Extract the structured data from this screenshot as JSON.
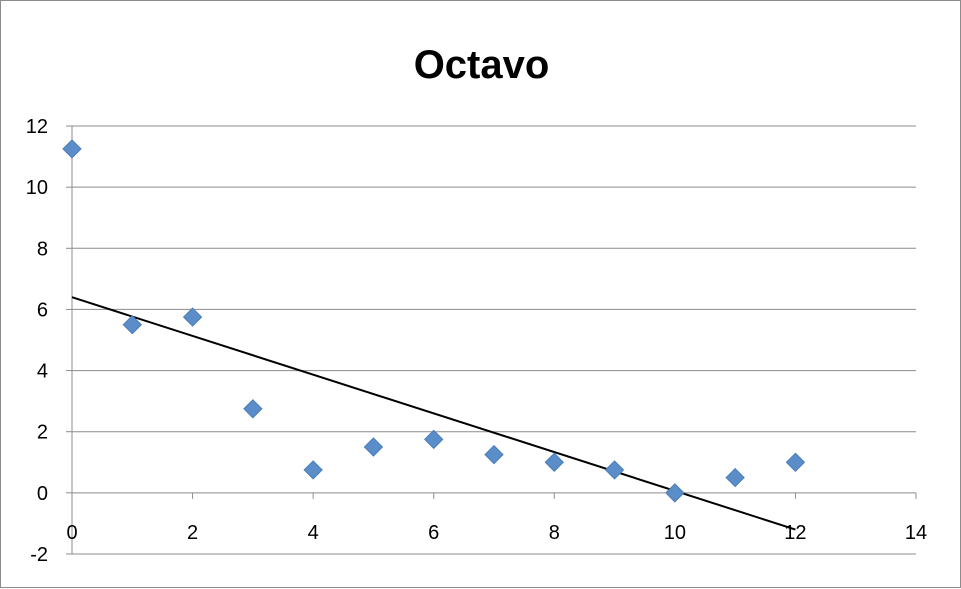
{
  "chart_data": {
    "type": "scatter",
    "title": "Octavo",
    "xlabel": "",
    "ylabel": "",
    "xlim": [
      0,
      14
    ],
    "ylim": [
      -2,
      12
    ],
    "x_ticks": [
      0,
      2,
      4,
      6,
      8,
      10,
      12,
      14
    ],
    "y_ticks": [
      -2,
      0,
      2,
      4,
      6,
      8,
      10,
      12
    ],
    "horizontal_gridlines": true,
    "legend": "none",
    "series": [
      {
        "marker": "diamond",
        "color": "#5B8DC8",
        "points": [
          {
            "x": 0,
            "y": 11.25
          },
          {
            "x": 1,
            "y": 5.5
          },
          {
            "x": 2,
            "y": 5.75
          },
          {
            "x": 3,
            "y": 2.75
          },
          {
            "x": 4,
            "y": 0.75
          },
          {
            "x": 5,
            "y": 1.5
          },
          {
            "x": 6,
            "y": 1.75
          },
          {
            "x": 7,
            "y": 1.25
          },
          {
            "x": 8,
            "y": 1.0
          },
          {
            "x": 9,
            "y": 0.75
          },
          {
            "x": 10,
            "y": 0.0
          },
          {
            "x": 11,
            "y": 0.5
          },
          {
            "x": 12,
            "y": 1.0
          }
        ]
      }
    ],
    "trendline": {
      "type": "linear",
      "color": "#000000",
      "from": {
        "x": 0,
        "y": 6.4
      },
      "to": {
        "x": 12,
        "y": -1.2
      }
    }
  }
}
